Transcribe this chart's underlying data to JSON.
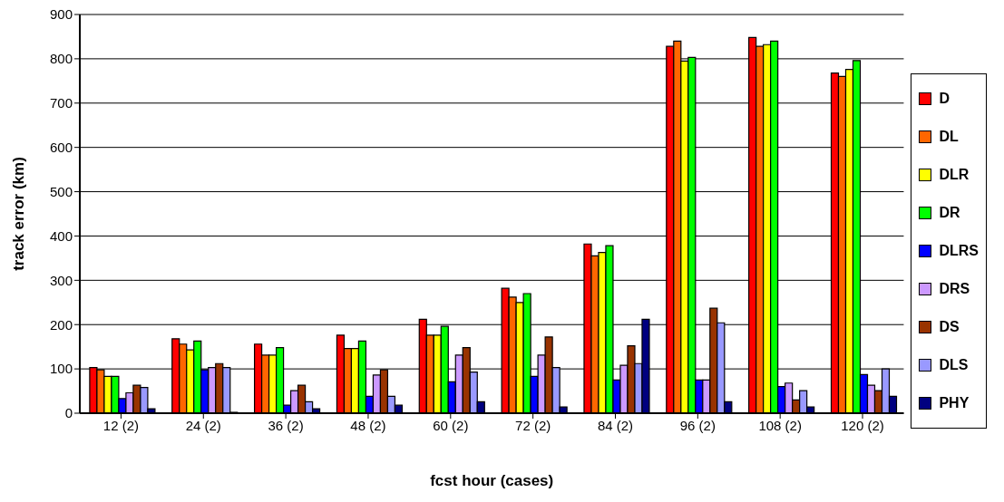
{
  "chart_data": {
    "type": "bar",
    "xlabel": "fcst hour (cases)",
    "ylabel": "track error (km)",
    "categories": [
      "12 (2)",
      "24 (2)",
      "36 (2)",
      "48 (2)",
      "60 (2)",
      "72 (2)",
      "84 (2)",
      "96 (2)",
      "108 (2)",
      "120 (2)"
    ],
    "series": [
      {
        "name": "D",
        "color": "#ff0000",
        "values": [
          103,
          168,
          156,
          176,
          212,
          282,
          382,
          828,
          848,
          768
        ]
      },
      {
        "name": "DL",
        "color": "#ff6600",
        "values": [
          98,
          156,
          131,
          146,
          176,
          262,
          355,
          840,
          828,
          760
        ]
      },
      {
        "name": "DLR",
        "color": "#ffff00",
        "values": [
          83,
          143,
          131,
          146,
          176,
          250,
          363,
          795,
          832,
          776
        ]
      },
      {
        "name": "DR",
        "color": "#00ff00",
        "values": [
          83,
          163,
          148,
          163,
          196,
          270,
          378,
          803,
          840,
          796
        ]
      },
      {
        "name": "DLRS",
        "color": "#0000ff",
        "values": [
          33,
          98,
          18,
          38,
          71,
          83,
          75,
          75,
          60,
          87
        ]
      },
      {
        "name": "DRS",
        "color": "#cc99ff",
        "values": [
          46,
          103,
          51,
          86,
          131,
          131,
          108,
          75,
          68,
          63
        ]
      },
      {
        "name": "DS",
        "color": "#993300",
        "values": [
          63,
          112,
          63,
          98,
          148,
          172,
          152,
          237,
          30,
          51
        ]
      },
      {
        "name": "DLS",
        "color": "#9999ff",
        "values": [
          58,
          103,
          26,
          38,
          93,
          103,
          112,
          204,
          51,
          100
        ]
      },
      {
        "name": "PHY",
        "color": "#000080",
        "values": [
          10,
          2,
          10,
          18,
          26,
          14,
          212,
          26,
          14,
          38
        ]
      }
    ],
    "ylim": [
      0,
      900
    ],
    "yticks": [
      0,
      100,
      200,
      300,
      400,
      500,
      600,
      700,
      800,
      900
    ],
    "grid": "y",
    "legend": "right"
  }
}
